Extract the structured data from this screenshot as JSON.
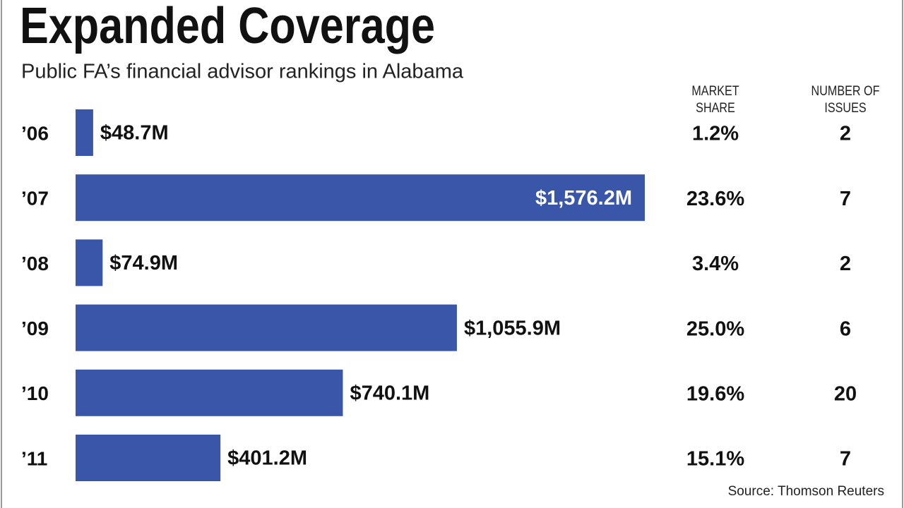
{
  "chart_data": {
    "type": "bar",
    "title": "Expanded Coverage",
    "subtitle": "Public FA’s financial advisor rankings in Alabama",
    "categories": [
      "’06",
      "’07",
      "’08",
      "’09",
      "’10",
      "’11"
    ],
    "values": [
      48.7,
      1576.2,
      74.9,
      1055.9,
      740.1,
      401.2
    ],
    "value_labels": [
      "$48.7M",
      "$1,576.2M",
      "$74.9M",
      "$1,055.9M",
      "$740.1M",
      "$401.2M"
    ],
    "color": "#3a56a8",
    "columns": [
      {
        "name": "MARKET SHARE",
        "values": [
          1.2,
          23.6,
          3.4,
          25.0,
          19.6,
          15.1
        ],
        "value_labels": [
          "1.2%",
          "23.6%",
          "3.4%",
          "25.0%",
          "19.6%",
          "15.1%"
        ]
      },
      {
        "name": "NUMBER OF ISSUES",
        "values": [
          2,
          7,
          2,
          6,
          20,
          7
        ]
      }
    ],
    "source": "Source: Thomson Reuters"
  }
}
